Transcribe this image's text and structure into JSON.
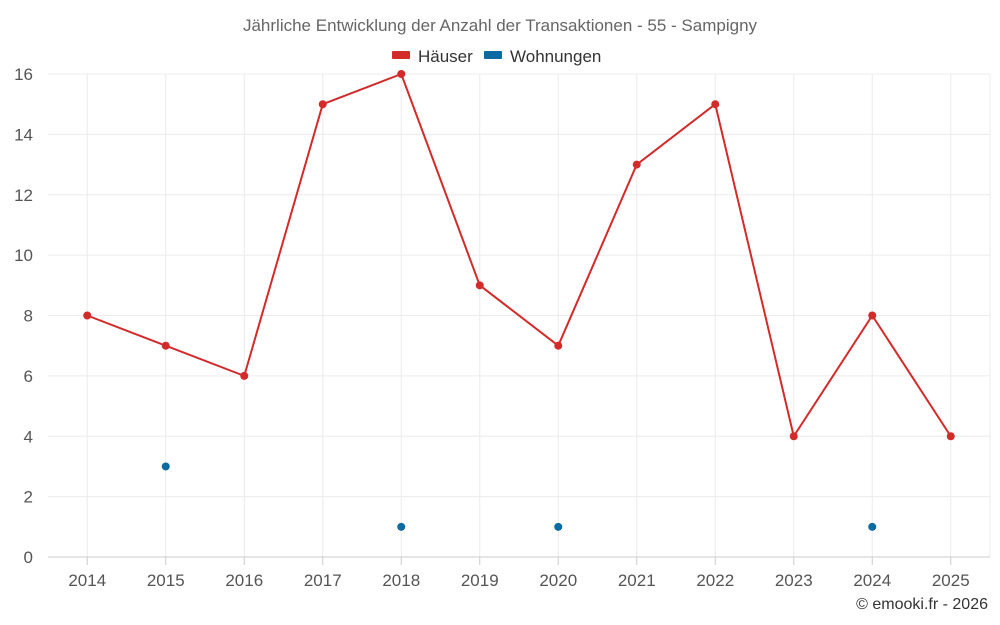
{
  "chart_data": {
    "type": "line",
    "title": "Jährliche Entwicklung der Anzahl der Transaktionen - 55 - Sampigny",
    "categories": [
      "2014",
      "2015",
      "2016",
      "2017",
      "2018",
      "2019",
      "2020",
      "2021",
      "2022",
      "2023",
      "2024",
      "2025"
    ],
    "y_ticks": [
      "0",
      "2",
      "4",
      "6",
      "8",
      "10",
      "12",
      "14",
      "16"
    ],
    "ylim": [
      0,
      16
    ],
    "grid": true,
    "legend_position": "top-center",
    "series": [
      {
        "name": "Häuser",
        "color": "#d32a2a",
        "style": "line-markers",
        "values": [
          8,
          7,
          6,
          15,
          16,
          9,
          7,
          13,
          15,
          4,
          8,
          4
        ]
      },
      {
        "name": "Wohnungen",
        "color": "#0a6aa1",
        "style": "markers",
        "values": [
          null,
          3,
          null,
          null,
          1,
          null,
          1,
          null,
          null,
          null,
          1,
          null
        ]
      }
    ],
    "credit": "© emooki.fr - 2026"
  }
}
